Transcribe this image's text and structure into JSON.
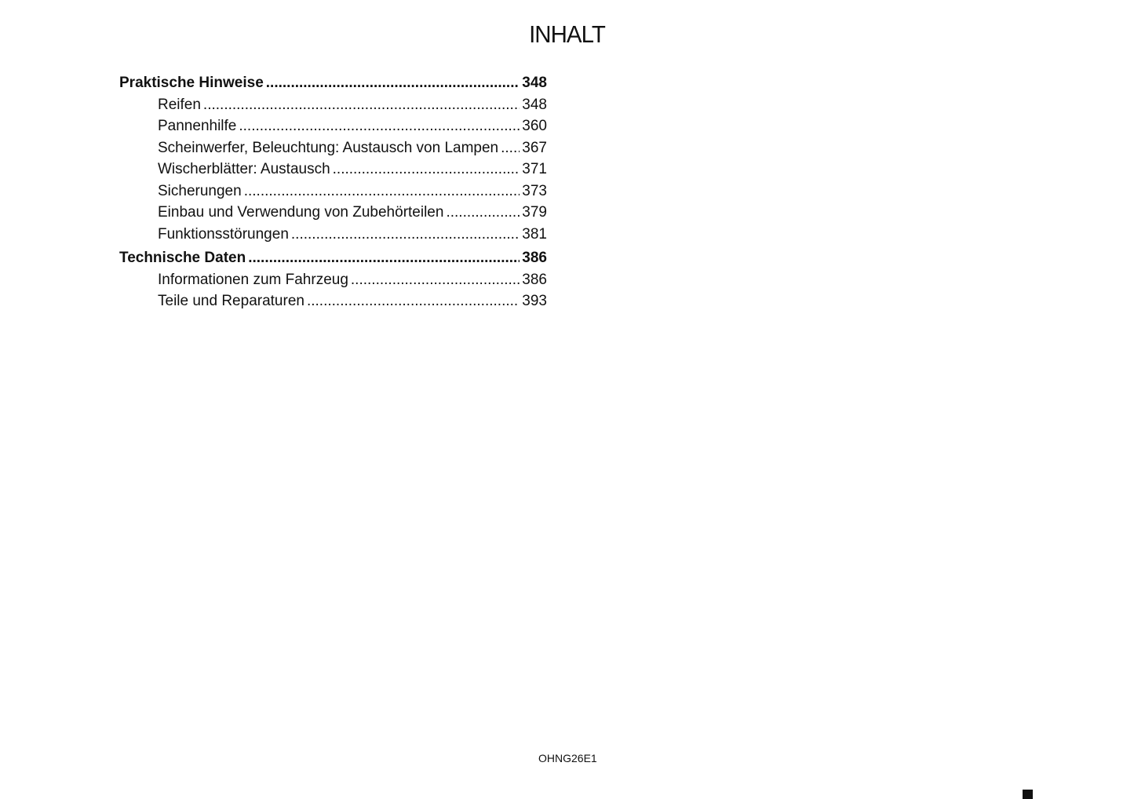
{
  "title": "INHALT",
  "toc": [
    {
      "level": "main",
      "label": "Praktische Hinweise",
      "page": "348"
    },
    {
      "level": "sub",
      "label": "Reifen",
      "page": "348"
    },
    {
      "level": "sub",
      "label": "Pannenhilfe",
      "page": "360"
    },
    {
      "level": "sub",
      "label": "Scheinwerfer, Beleuchtung: Austausch von Lampen",
      "page": "367"
    },
    {
      "level": "sub",
      "label": "Wischerblätter: Austausch",
      "page": "371"
    },
    {
      "level": "sub",
      "label": "Sicherungen",
      "page": "373"
    },
    {
      "level": "sub",
      "label": "Einbau und Verwendung von Zubehörteilen",
      "page": "379"
    },
    {
      "level": "sub",
      "label": "Funktionsstörungen",
      "page": "381"
    },
    {
      "level": "main",
      "label": "Technische Daten",
      "page": "386"
    },
    {
      "level": "sub",
      "label": "Informationen zum Fahrzeug",
      "page": "386"
    },
    {
      "level": "sub",
      "label": "Teile und Reparaturen",
      "page": "393"
    }
  ],
  "footer_code": "OHNG26E1"
}
